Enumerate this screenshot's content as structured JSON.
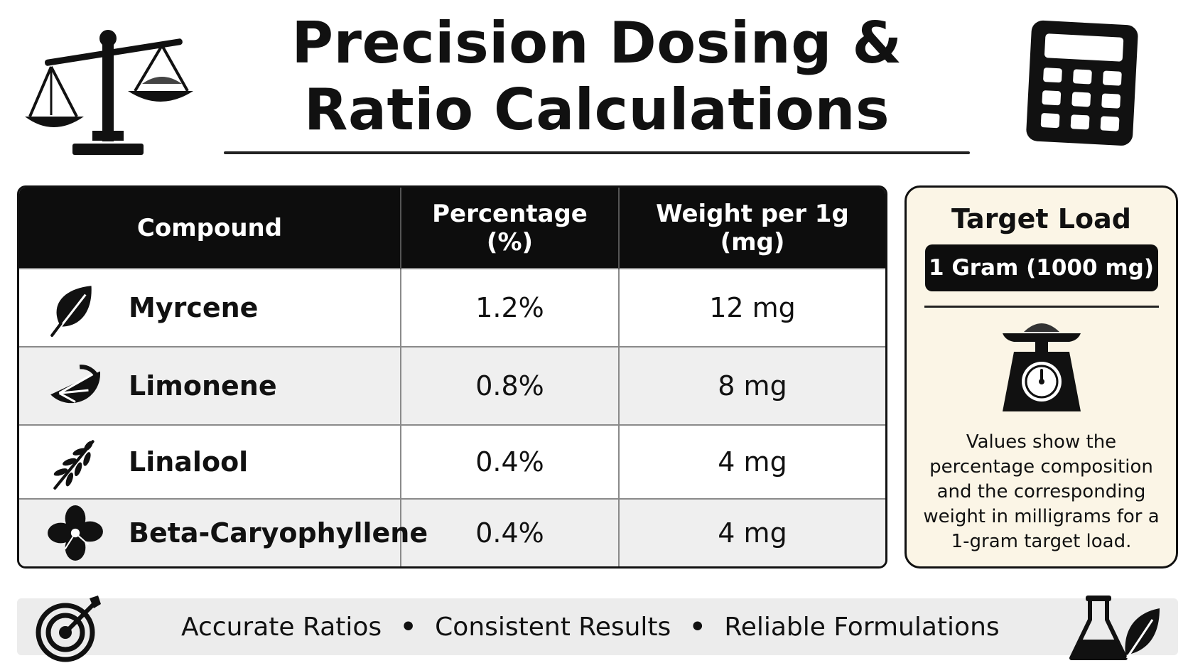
{
  "title": {
    "line1": "Precision Dosing &",
    "line2": "Ratio Calculations"
  },
  "header_icons": {
    "left": "balance-scale-icon",
    "right": "calculator-icon"
  },
  "table": {
    "headers": {
      "compound": "Compound",
      "percentage_line1": "Percentage",
      "percentage_line2": "(%)",
      "weight_line1": "Weight per 1g",
      "weight_line2": "(mg)"
    },
    "rows": [
      {
        "icon": "leaf-icon",
        "name": "Myrcene",
        "percentage": "1.2%",
        "weight": "12 mg"
      },
      {
        "icon": "citrus-slice-icon",
        "name": "Limonene",
        "percentage": "0.8%",
        "weight": "8 mg"
      },
      {
        "icon": "lavender-sprig-icon",
        "name": "Linalool",
        "percentage": "0.4%",
        "weight": "4 mg"
      },
      {
        "icon": "clove-flower-icon",
        "name": "Beta-Caryophyllene",
        "percentage": "0.4%",
        "weight": "4 mg"
      }
    ]
  },
  "target_card": {
    "title": "Target Load",
    "value": "1 Gram (1000 mg)",
    "icon": "kitchen-scale-icon",
    "description": "Values show the percentage composition and the corresponding weight in milligrams for a 1-gram target load."
  },
  "footer": {
    "left_icon": "target-arrow-icon",
    "right_icon": "flask-leaf-icon",
    "items": [
      "Accurate Ratios",
      "Consistent Results",
      "Reliable Formulations"
    ],
    "separator": "•"
  },
  "colors": {
    "header_bg": "#0d0d0d",
    "card_bg": "#fbf5e6",
    "footer_bg": "#ececec",
    "alt_row_bg": "#efefef"
  }
}
